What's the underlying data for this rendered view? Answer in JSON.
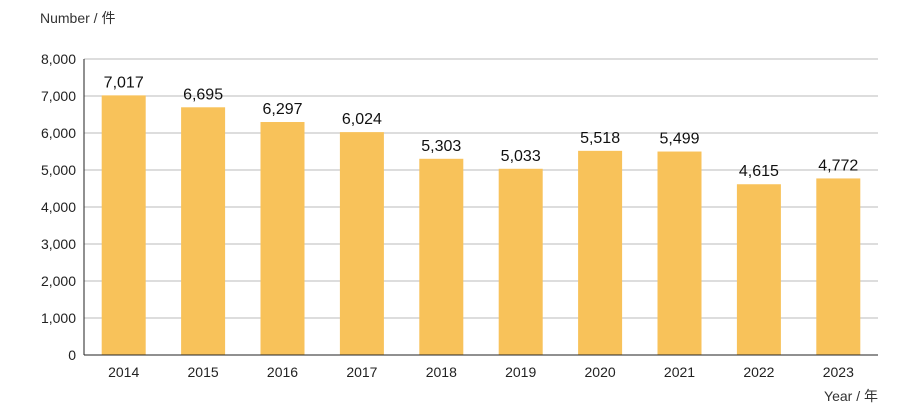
{
  "chart_data": {
    "type": "bar",
    "title": "",
    "ylabel": "Number / 件",
    "xlabel": "Year / 年",
    "categories": [
      "2014",
      "2015",
      "2016",
      "2017",
      "2018",
      "2019",
      "2020",
      "2021",
      "2022",
      "2023"
    ],
    "values": [
      7017,
      6695,
      6297,
      6024,
      5303,
      5033,
      5518,
      5499,
      4615,
      4772
    ],
    "value_labels": [
      "7,017",
      "6,695",
      "6,297",
      "6,024",
      "5,303",
      "5,033",
      "5,518",
      "5,499",
      "4,615",
      "4,772"
    ],
    "ylim": [
      0,
      8000
    ],
    "yticks": [
      0,
      1000,
      2000,
      3000,
      4000,
      5000,
      6000,
      7000,
      8000
    ],
    "ytick_labels": [
      "0",
      "1,000",
      "2,000",
      "3,000",
      "4,000",
      "5,000",
      "6,000",
      "7,000",
      "8,000"
    ],
    "grid": true,
    "legend": "none",
    "bar_color": "#F8C25A",
    "grid_color": "#BBBBBB"
  }
}
